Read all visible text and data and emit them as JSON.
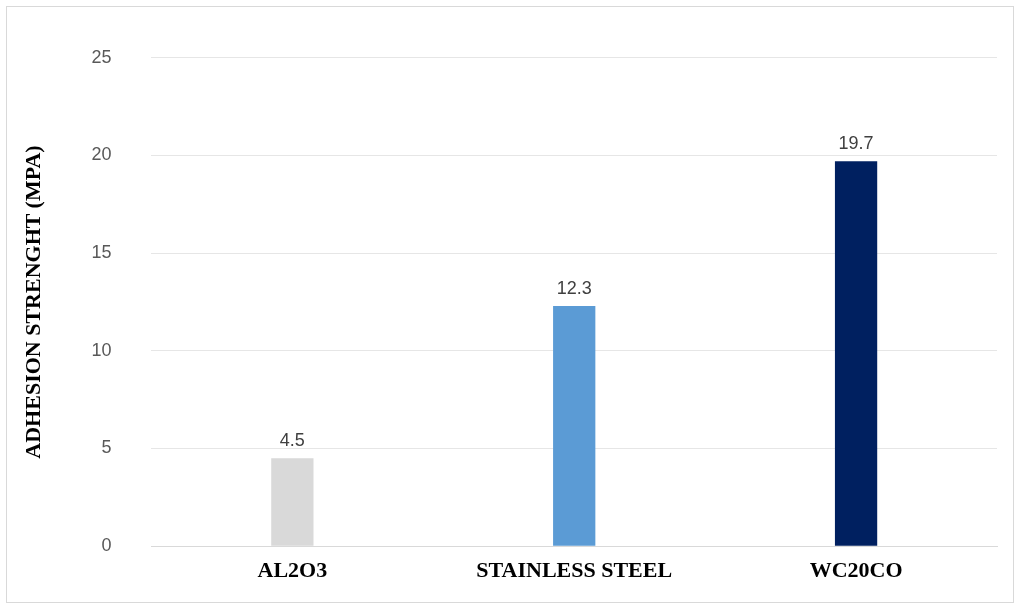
{
  "chart_data": {
    "type": "bar",
    "ylabel": "ADHESION STRENGHT (MPA)",
    "categories": [
      "AL2O3",
      "STAINLESS STEEL",
      "WC20CO"
    ],
    "values": [
      4.5,
      12.3,
      19.7
    ],
    "colors": [
      "#d9d9d9",
      "#5b9bd5",
      "#002060"
    ],
    "ylim": [
      0,
      25
    ],
    "yticks": [
      0,
      5,
      10,
      15,
      20,
      25
    ],
    "grid": "y",
    "data_labels": true,
    "legend": false
  }
}
